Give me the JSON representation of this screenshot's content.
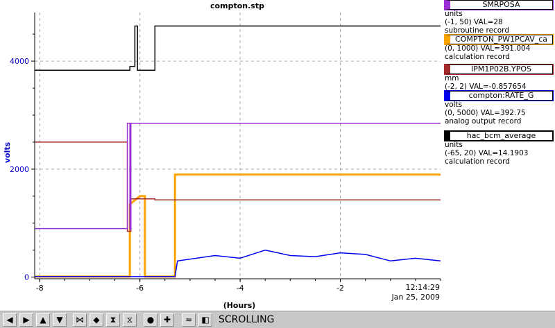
{
  "chart_data": {
    "type": "line",
    "title": "compton.stp",
    "xlabel": "(Hours)",
    "ylabel": "volts",
    "xlim": [
      -8.1,
      0
    ],
    "ylim": [
      -30,
      4900
    ],
    "y_ticks": [
      "0",
      "2000",
      "4000"
    ],
    "x_ticks": [
      "-8",
      "-6",
      "-4",
      "-2"
    ],
    "time_label": "12:14:29",
    "date_label": "Jan 25, 2009",
    "grid": true,
    "series": [
      {
        "name": "SMRPOSA",
        "color": "#9b30d9",
        "x": [
          -8.1,
          -6.25,
          -6.25,
          -6.2,
          -6.2,
          -6.18,
          -6.18,
          0
        ],
        "y": [
          900,
          900,
          2850,
          2850,
          880,
          880,
          2850,
          2850
        ]
      },
      {
        "name": "COMPTON_PW1PCAV_ca",
        "color": "#ffa500",
        "x": [
          -8.1,
          -6.2,
          -6.2,
          -6.0,
          -5.9,
          -5.9,
          -5.3,
          -5.3,
          0
        ],
        "y": [
          10,
          10,
          1350,
          1500,
          1500,
          10,
          10,
          1900,
          1900
        ]
      },
      {
        "name": "IPM1P02B.YPOS",
        "color": "#a52a2a",
        "x": [
          -8.1,
          -6.25,
          -6.25,
          -6.18,
          -6.18,
          -5.7,
          -5.7,
          0
        ],
        "y": [
          2500,
          2500,
          850,
          850,
          1450,
          1450,
          1430,
          1430
        ]
      },
      {
        "name": "compton:RATE_G",
        "color": "#0000ee",
        "x": [
          -8.1,
          -5.3,
          -5.25,
          -4.5,
          -4.0,
          -3.5,
          -3.0,
          -2.5,
          -2.0,
          -1.5,
          -1.0,
          -0.5,
          0
        ],
        "y": [
          10,
          10,
          300,
          400,
          350,
          500,
          400,
          380,
          450,
          420,
          300,
          350,
          300
        ]
      },
      {
        "name": "hac_bcm_average",
        "color": "#000000",
        "x": [
          -8.1,
          -6.2,
          -6.2,
          -6.1,
          -6.1,
          -6.05,
          -6.05,
          -5.7,
          -5.7,
          -5.3,
          -5.3,
          0
        ],
        "y": [
          3830,
          3830,
          3900,
          3900,
          4650,
          4650,
          3830,
          3830,
          4650,
          4650,
          4650,
          4650
        ]
      }
    ]
  },
  "legend": [
    {
      "name": "SMRPOSA",
      "color": "#9b30d9",
      "units": "units",
      "range": "(-1, 50) VAL=28",
      "record": "subroutine record"
    },
    {
      "name": "COMPTON_PW1PCAV_ca",
      "color": "#ffa500",
      "units": "",
      "range": "(0, 1000) VAL=391.004",
      "record": "calculation record"
    },
    {
      "name": "IPM1P02B.YPOS",
      "color": "#a52a2a",
      "units": "mm",
      "range": "(-2, 2) VAL=-0.857654",
      "record": ""
    },
    {
      "name": "compton:RATE_G",
      "color": "#0000ee",
      "units": "volts",
      "range": "(0, 5000) VAL=392.75",
      "record": "analog output record"
    },
    {
      "name": "hac_bcm_average",
      "color": "#000000",
      "units": "units",
      "range": "(-65, 20) VAL=14.1903",
      "record": "calculation record"
    }
  ],
  "toolbar": {
    "buttons": [
      {
        "icon": "arrow-left-icon",
        "glyph": "◀"
      },
      {
        "icon": "arrow-right-icon",
        "glyph": "▶"
      },
      {
        "icon": "arrow-up-icon",
        "glyph": "▲"
      },
      {
        "icon": "arrow-down-icon",
        "glyph": "▼"
      },
      {
        "icon": "zoom-in-x-icon",
        "glyph": "⋈"
      },
      {
        "icon": "zoom-out-x-icon",
        "glyph": "◆"
      },
      {
        "icon": "zoom-in-y-icon",
        "glyph": "⧗"
      },
      {
        "icon": "zoom-out-y-icon",
        "glyph": "⧖"
      },
      {
        "icon": "autoscale-icon",
        "glyph": "●"
      },
      {
        "icon": "add-icon",
        "glyph": "✚"
      },
      {
        "icon": "style-icon",
        "glyph": "≂"
      },
      {
        "icon": "back-icon",
        "glyph": "◧"
      }
    ],
    "mode_label": "SCROLLING"
  }
}
